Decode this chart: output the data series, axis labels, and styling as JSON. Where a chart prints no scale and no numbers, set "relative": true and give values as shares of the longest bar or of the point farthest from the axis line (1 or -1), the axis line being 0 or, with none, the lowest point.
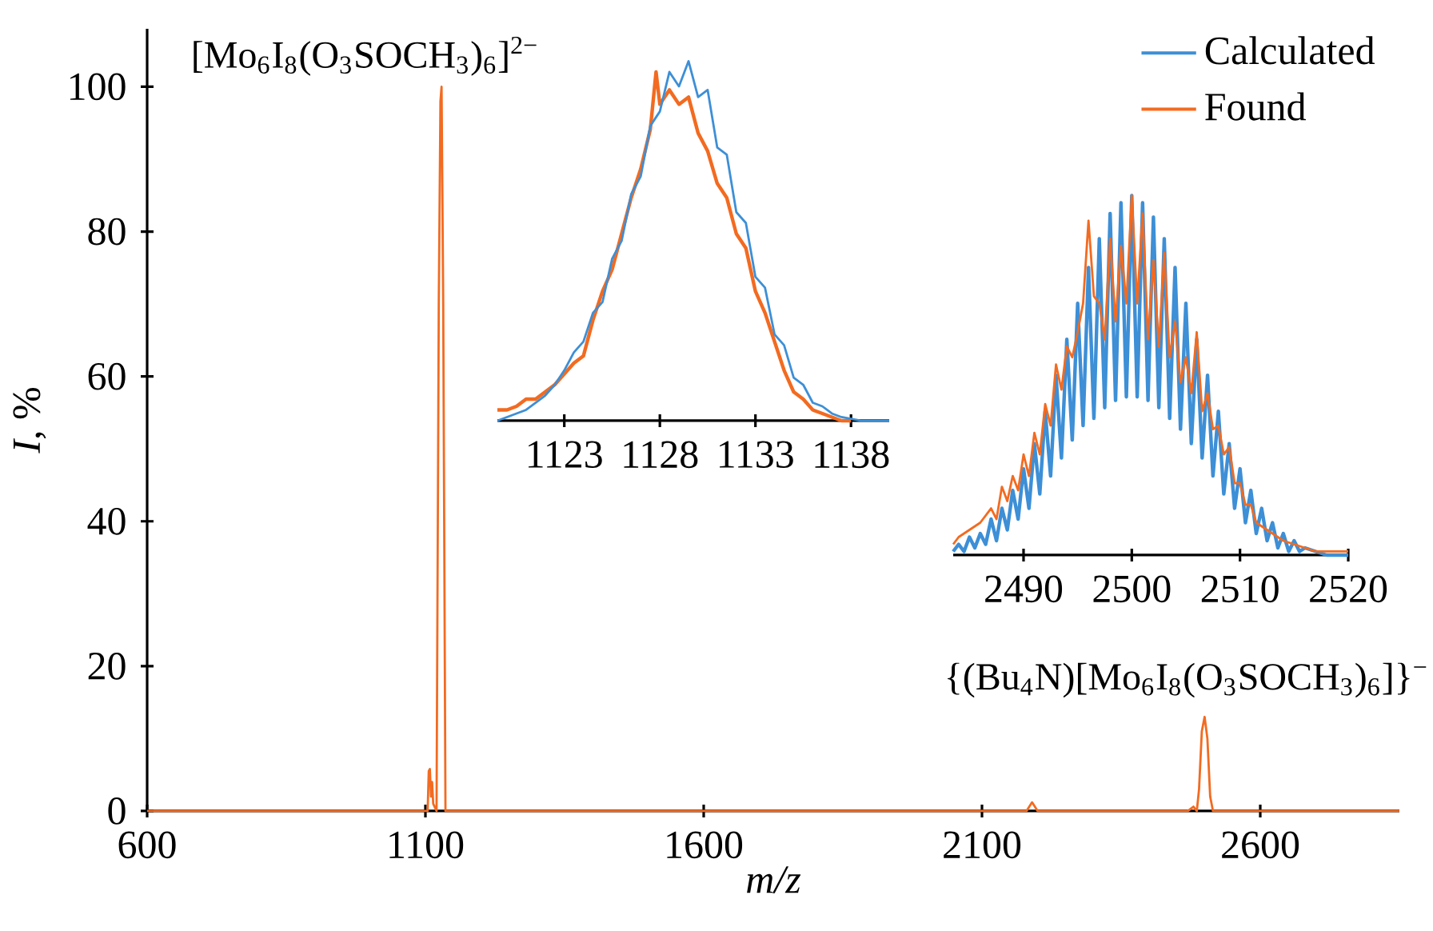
{
  "chart_data": [
    {
      "type": "line",
      "xlabel": "m/z",
      "ylabel": "*I*, %",
      "xlim": [
        600,
        2850
      ],
      "ylim": [
        0,
        108
      ],
      "xticks": [
        600,
        1100,
        1600,
        2100,
        2600
      ],
      "yticks": [
        0,
        20,
        40,
        60,
        80,
        100
      ],
      "annotations": [
        "[Mo$_{6}$I$_{8}$(O$_{3}$SOCH$_{3}$)$_{6}$]$^{2−}$",
        "{(Bu$_{4}$N)[Mo$_{6}$I$_{8}$(O$_{3}$SOCH$_{3}$)$_{6}$]}$^{−}$"
      ],
      "series": [
        {
          "color": "#f26b21",
          "x": [
            600,
            1100,
            1104,
            1106,
            1108,
            1110,
            1112,
            1114,
            1120,
            1124,
            1127,
            1129,
            1132,
            1136,
            2180,
            2190,
            2200,
            2470,
            2480,
            2486,
            2490,
            2495,
            2500,
            2505,
            2510,
            2515,
            2850
          ],
          "values": [
            0,
            0,
            0,
            5.5,
            5.8,
            2,
            4,
            1,
            0,
            70,
            98,
            100,
            70,
            0,
            0,
            1.2,
            0,
            0,
            0.6,
            0,
            3,
            11,
            13,
            10,
            2,
            0,
            0
          ]
        }
      ]
    },
    {
      "type": "line",
      "relative": true,
      "xlim": [
        1119.5,
        1140
      ],
      "xticks": [
        1123,
        1128,
        1133,
        1138
      ],
      "series": [
        {
          "color": "#f26b21",
          "x": [
            1119.5,
            1120,
            1120.5,
            1121,
            1121.5,
            1122,
            1122.5,
            1123,
            1123.5,
            1124,
            1124.5,
            1125,
            1125.5,
            1126,
            1126.5,
            1127,
            1127.5,
            1127.8,
            1128,
            1128.5,
            1129,
            1129.5,
            1130,
            1130.5,
            1131,
            1131.5,
            1132,
            1132.5,
            1133,
            1133.5,
            1134,
            1134.5,
            1135,
            1135.5,
            1136,
            1136.5,
            1137,
            1137.5,
            1138
          ],
          "values": [
            0.03,
            0.03,
            0.04,
            0.06,
            0.06,
            0.08,
            0.1,
            0.13,
            0.16,
            0.18,
            0.28,
            0.36,
            0.42,
            0.52,
            0.62,
            0.7,
            0.81,
            0.97,
            0.88,
            0.92,
            0.88,
            0.9,
            0.8,
            0.75,
            0.66,
            0.62,
            0.52,
            0.48,
            0.36,
            0.3,
            0.22,
            0.14,
            0.08,
            0.06,
            0.03,
            0.02,
            0.01,
            0,
            0
          ]
        },
        {
          "color": "#3d8fd6",
          "x": [
            1119.5,
            1120,
            1120.5,
            1121,
            1121.5,
            1122,
            1122.5,
            1123,
            1123.5,
            1124,
            1124.5,
            1125,
            1125.5,
            1126,
            1126.5,
            1127,
            1127.5,
            1128,
            1128.5,
            1129,
            1129.5,
            1130,
            1130.5,
            1131,
            1131.5,
            1132,
            1132.5,
            1133,
            1133.5,
            1134,
            1134.5,
            1135,
            1135.5,
            1136,
            1136.5,
            1137,
            1137.5,
            1138,
            1138.5,
            1139,
            1140
          ],
          "values": [
            0,
            0.01,
            0.02,
            0.03,
            0.05,
            0.07,
            0.1,
            0.14,
            0.19,
            0.22,
            0.3,
            0.33,
            0.45,
            0.5,
            0.63,
            0.68,
            0.82,
            0.86,
            0.97,
            0.93,
            1.0,
            0.9,
            0.92,
            0.76,
            0.74,
            0.58,
            0.55,
            0.4,
            0.37,
            0.24,
            0.21,
            0.12,
            0.1,
            0.05,
            0.04,
            0.02,
            0.01,
            0.005,
            0,
            0,
            0
          ]
        }
      ]
    },
    {
      "type": "line",
      "relative": true,
      "xlim": [
        2483.5,
        2520
      ],
      "xticks": [
        2490,
        2500,
        2510,
        2520
      ],
      "legend": "top right",
      "series": [
        {
          "name": "Calculated",
          "color": "#3d8fd6",
          "x": [
            2483.5,
            2484,
            2484.5,
            2485,
            2485.5,
            2486,
            2486.5,
            2487,
            2487.5,
            2488,
            2488.5,
            2489,
            2489.5,
            2490,
            2490.5,
            2491,
            2491.5,
            2492,
            2492.5,
            2493,
            2493.5,
            2494,
            2494.5,
            2495,
            2495.5,
            2496,
            2496.5,
            2497,
            2497.5,
            2498,
            2498.5,
            2499,
            2499.5,
            2500,
            2500.5,
            2501,
            2501.5,
            2502,
            2502.5,
            2503,
            2503.5,
            2504,
            2504.5,
            2505,
            2505.5,
            2506,
            2506.5,
            2507,
            2507.5,
            2508,
            2508.5,
            2509,
            2509.5,
            2510,
            2510.5,
            2511,
            2511.5,
            2512,
            2512.5,
            2513,
            2513.5,
            2514,
            2514.5,
            2515,
            2515.5,
            2516,
            2517,
            2518,
            2520
          ],
          "values": [
            0.01,
            0.03,
            0.01,
            0.05,
            0.02,
            0.06,
            0.03,
            0.1,
            0.04,
            0.13,
            0.07,
            0.18,
            0.1,
            0.24,
            0.13,
            0.31,
            0.17,
            0.4,
            0.22,
            0.5,
            0.27,
            0.6,
            0.32,
            0.7,
            0.36,
            0.8,
            0.38,
            0.88,
            0.41,
            0.95,
            0.43,
            0.98,
            0.44,
            1.0,
            0.44,
            0.98,
            0.43,
            0.94,
            0.41,
            0.88,
            0.38,
            0.8,
            0.35,
            0.7,
            0.31,
            0.6,
            0.27,
            0.5,
            0.22,
            0.4,
            0.17,
            0.31,
            0.13,
            0.24,
            0.09,
            0.18,
            0.06,
            0.13,
            0.04,
            0.09,
            0.02,
            0.06,
            0.01,
            0.04,
            0.01,
            0.02,
            0.01,
            0,
            0
          ]
        },
        {
          "name": "Found",
          "color": "#f26b21",
          "x": [
            2483.5,
            2484,
            2485,
            2486,
            2487,
            2487.5,
            2488,
            2488.5,
            2489,
            2489.5,
            2490,
            2490.5,
            2491,
            2491.5,
            2492,
            2492.5,
            2493,
            2493.5,
            2494,
            2494.5,
            2495,
            2495.5,
            2496,
            2496.5,
            2497,
            2497.5,
            2498,
            2498.5,
            2499,
            2499.5,
            2500,
            2500.5,
            2501,
            2501.5,
            2502,
            2502.5,
            2503,
            2503.5,
            2504,
            2504.5,
            2505,
            2505.5,
            2506,
            2506.5,
            2507,
            2507.5,
            2508,
            2508.5,
            2509,
            2509.5,
            2510,
            2510.5,
            2511,
            2511.5,
            2512,
            2513,
            2514,
            2515,
            2516,
            2517,
            2518,
            2520
          ],
          "values": [
            0.03,
            0.05,
            0.07,
            0.09,
            0.13,
            0.1,
            0.19,
            0.15,
            0.22,
            0.18,
            0.28,
            0.22,
            0.34,
            0.28,
            0.42,
            0.36,
            0.53,
            0.46,
            0.58,
            0.55,
            0.62,
            0.7,
            0.93,
            0.72,
            0.7,
            0.6,
            0.88,
            0.65,
            0.86,
            0.7,
            1.0,
            0.7,
            0.95,
            0.6,
            0.82,
            0.58,
            0.84,
            0.55,
            0.65,
            0.48,
            0.55,
            0.45,
            0.62,
            0.4,
            0.45,
            0.35,
            0.36,
            0.28,
            0.3,
            0.2,
            0.2,
            0.14,
            0.14,
            0.09,
            0.08,
            0.06,
            0.04,
            0.03,
            0.02,
            0.01,
            0.01,
            0.01
          ]
        }
      ]
    }
  ]
}
